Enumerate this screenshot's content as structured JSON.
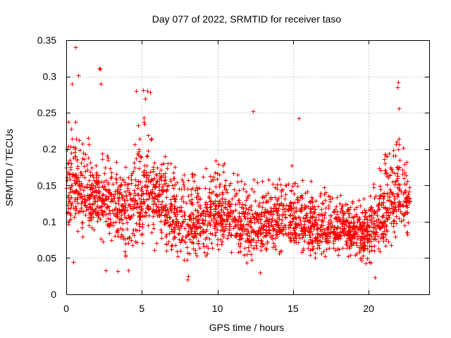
{
  "chart_data": {
    "type": "scatter",
    "title": "Day 077 of 2022, SRMTID for receiver taso",
    "xlabel": "GPS time / hours",
    "ylabel": "SRMTID / TECUs",
    "xlim": [
      0,
      24
    ],
    "ylim": [
      0,
      0.35
    ],
    "xticks": [
      0,
      5,
      10,
      15,
      20
    ],
    "xtick_labels": [
      "0",
      "5",
      "10",
      "15",
      "20"
    ],
    "yticks": [
      0,
      0.05,
      0.1,
      0.15,
      0.2,
      0.25,
      0.3,
      0.35
    ],
    "ytick_labels": [
      "0",
      "0.05",
      "0.1",
      "0.15",
      "0.2",
      "0.25",
      "0.3",
      "0.35"
    ],
    "grid": true,
    "marker": "+",
    "series_color": "#ff0000",
    "outliers": [
      [
        0.6,
        0.34
      ],
      [
        2.2,
        0.311
      ],
      [
        2.25,
        0.31
      ],
      [
        0.8,
        0.302
      ],
      [
        0.35,
        0.29
      ],
      [
        2.3,
        0.29
      ],
      [
        5.1,
        0.281
      ],
      [
        5.35,
        0.28
      ],
      [
        5.55,
        0.278
      ],
      [
        21.95,
        0.292
      ],
      [
        21.9,
        0.285
      ],
      [
        4.6,
        0.28
      ],
      [
        5.2,
        0.27
      ],
      [
        12.35,
        0.252
      ],
      [
        15.4,
        0.242
      ],
      [
        22.0,
        0.256
      ],
      [
        13.0,
        0.085
      ],
      [
        8.0,
        0.02
      ],
      [
        8.05,
        0.025
      ],
      [
        20.4,
        0.023
      ],
      [
        3.4,
        0.032
      ],
      [
        2.6,
        0.033
      ],
      [
        12.8,
        0.03
      ],
      [
        4.1,
        0.033
      ],
      [
        0.45,
        0.045
      ]
    ],
    "envelope": {
      "x": [
        0.0,
        1.0,
        2.0,
        3.0,
        4.0,
        5.0,
        6.0,
        7.0,
        8.0,
        9.0,
        10.0,
        11.0,
        12.0,
        13.0,
        14.0,
        15.0,
        16.0,
        17.0,
        18.0,
        19.0,
        20.0,
        21.0,
        22.0,
        22.7
      ],
      "low": [
        0.09,
        0.08,
        0.07,
        0.06,
        0.05,
        0.06,
        0.06,
        0.055,
        0.04,
        0.05,
        0.06,
        0.055,
        0.04,
        0.05,
        0.05,
        0.055,
        0.05,
        0.05,
        0.05,
        0.05,
        0.04,
        0.05,
        0.07,
        0.08
      ],
      "high": [
        0.26,
        0.23,
        0.2,
        0.19,
        0.19,
        0.25,
        0.22,
        0.18,
        0.17,
        0.17,
        0.19,
        0.17,
        0.18,
        0.16,
        0.16,
        0.18,
        0.16,
        0.15,
        0.14,
        0.14,
        0.13,
        0.2,
        0.25,
        0.17
      ],
      "mid": [
        0.15,
        0.14,
        0.13,
        0.12,
        0.12,
        0.13,
        0.13,
        0.11,
        0.09,
        0.1,
        0.11,
        0.1,
        0.09,
        0.1,
        0.1,
        0.1,
        0.095,
        0.09,
        0.09,
        0.09,
        0.08,
        0.11,
        0.14,
        0.12
      ]
    },
    "generated_point_count": 2600
  }
}
